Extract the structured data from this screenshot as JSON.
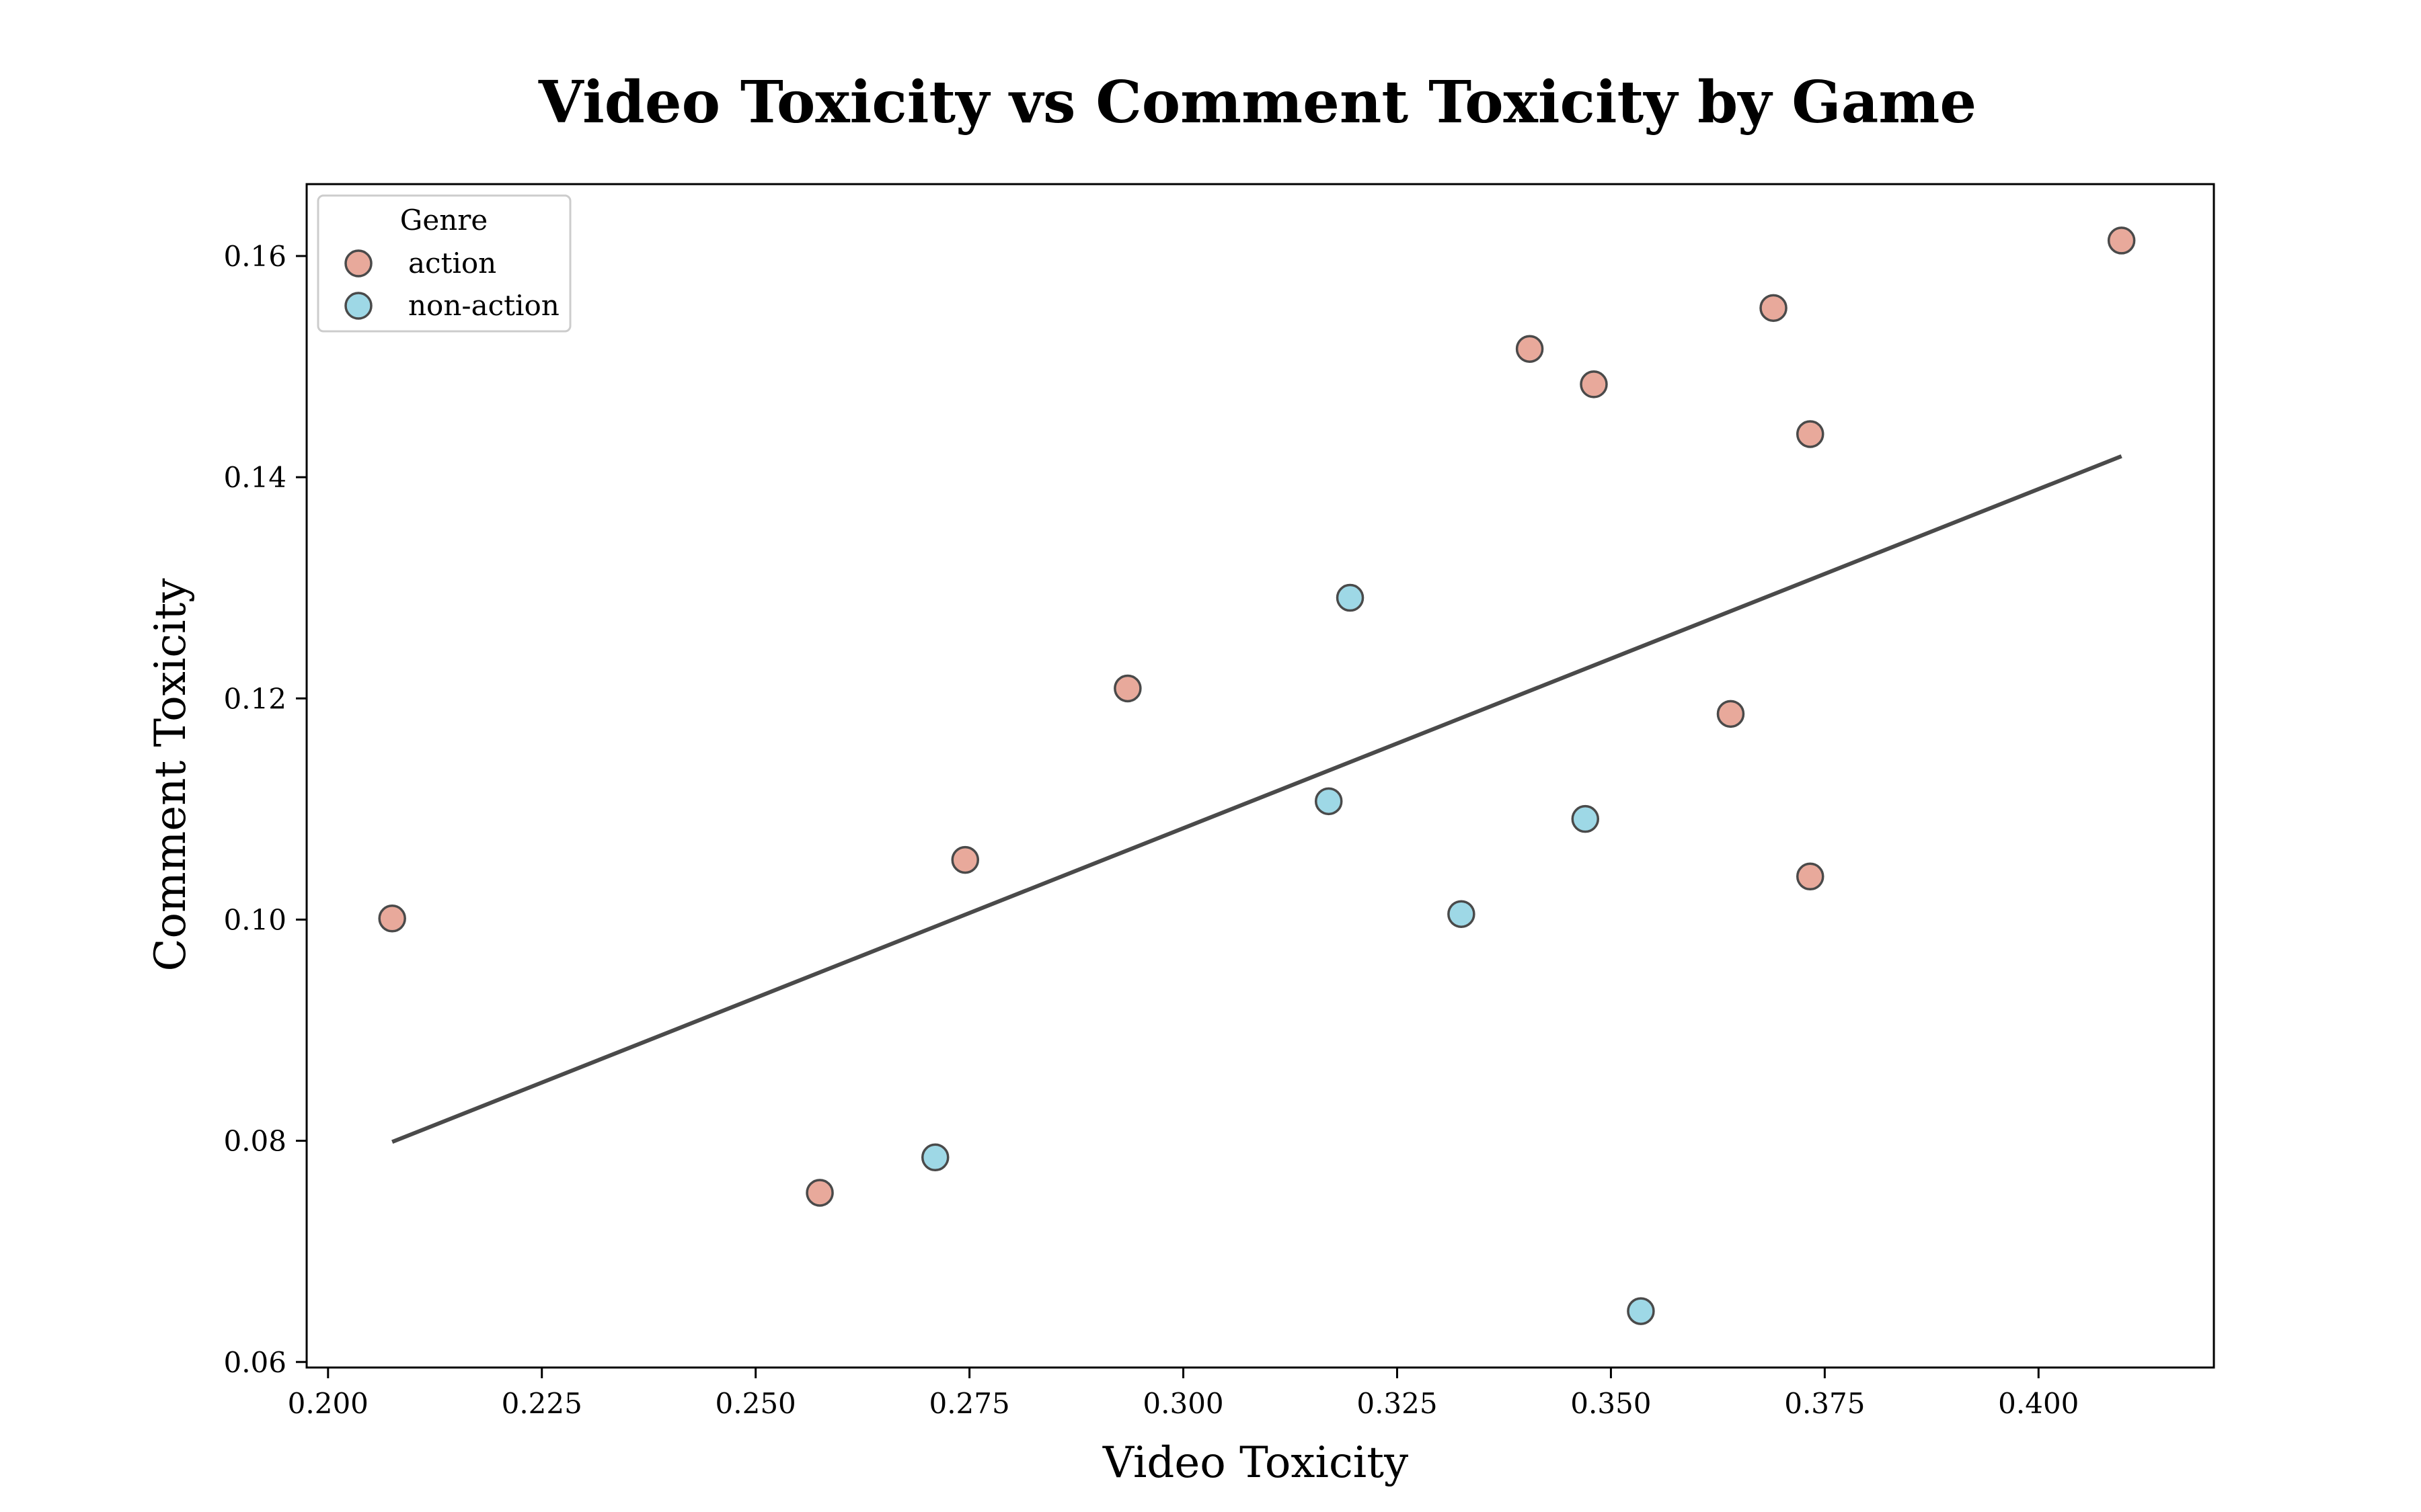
{
  "chart_data": {
    "type": "scatter",
    "title": "Video Toxicity vs Comment Toxicity by Game",
    "xlabel": "Video Toxicity",
    "ylabel": "Comment Toxicity",
    "xlim": [
      0.1975,
      0.4205
    ],
    "ylim": [
      0.0595,
      0.1665
    ],
    "xticks": [
      "0.200",
      "0.225",
      "0.250",
      "0.275",
      "0.300",
      "0.325",
      "0.350",
      "0.375",
      "0.400"
    ],
    "yticks": [
      "0.06",
      "0.08",
      "0.10",
      "0.12",
      "0.14",
      "0.16"
    ],
    "grid": false,
    "legend": {
      "title": "Genre",
      "placement": "top-left"
    },
    "series": [
      {
        "name": "action",
        "color": "#e8a99b",
        "points": [
          {
            "x": 0.2075,
            "y": 0.1001
          },
          {
            "x": 0.2575,
            "y": 0.0753
          },
          {
            "x": 0.2745,
            "y": 0.1054
          },
          {
            "x": 0.2935,
            "y": 0.1209
          },
          {
            "x": 0.3405,
            "y": 0.1516
          },
          {
            "x": 0.348,
            "y": 0.1484
          },
          {
            "x": 0.364,
            "y": 0.1186
          },
          {
            "x": 0.369,
            "y": 0.1553
          },
          {
            "x": 0.3733,
            "y": 0.1439
          },
          {
            "x": 0.3733,
            "y": 0.1039
          },
          {
            "x": 0.4097,
            "y": 0.1614
          }
        ]
      },
      {
        "name": "non-action",
        "color": "#9ed8e6",
        "points": [
          {
            "x": 0.271,
            "y": 0.0785
          },
          {
            "x": 0.317,
            "y": 0.1107
          },
          {
            "x": 0.3195,
            "y": 0.1291
          },
          {
            "x": 0.3325,
            "y": 0.1005
          },
          {
            "x": 0.347,
            "y": 0.1091
          },
          {
            "x": 0.3535,
            "y": 0.0646
          }
        ]
      }
    ],
    "trendline": {
      "color": "#4a4a4a",
      "x": [
        0.2075,
        0.4097
      ],
      "y": [
        0.0799,
        0.1419
      ]
    }
  }
}
